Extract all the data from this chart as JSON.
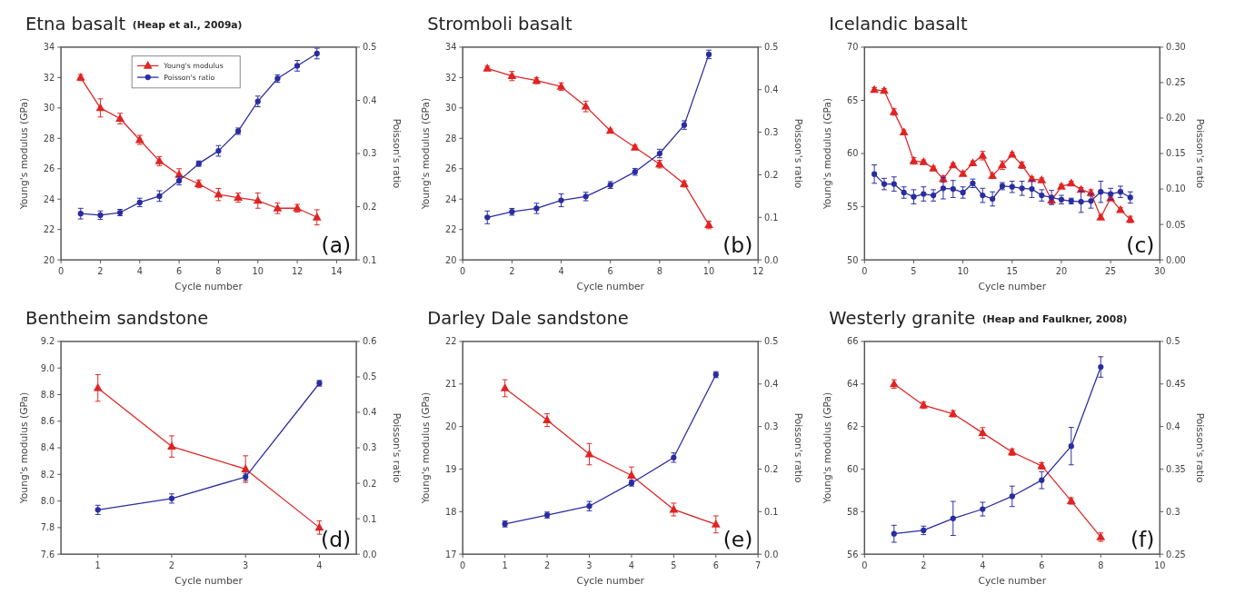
{
  "chart_data": [
    {
      "type": "line",
      "title": "Etna basalt",
      "subtitle": "(Heap et al., 2009a)",
      "xlabel": "Cycle number",
      "ylabel": "Young's modulus (GPa)",
      "y2label": "Poisson's ratio",
      "annotations": [
        "(a)"
      ],
      "legend": "top left",
      "grid": false,
      "xlim": [
        0,
        15
      ],
      "xticks": [
        0,
        2,
        4,
        6,
        8,
        10,
        12,
        14
      ],
      "ylim": [
        20,
        34
      ],
      "yticks": [
        20,
        22,
        24,
        26,
        28,
        30,
        32,
        34
      ],
      "y2lim": [
        0.1,
        0.5
      ],
      "y2ticks": [
        0.1,
        0.2,
        0.3,
        0.4,
        0.5
      ],
      "series": [
        {
          "name": "Young's modulus",
          "color": "#e02424",
          "marker": "triangle",
          "x": [
            1,
            2,
            3,
            4,
            5,
            6,
            7,
            8,
            9,
            10,
            11,
            12,
            13
          ],
          "values": [
            32.0,
            30.0,
            29.3,
            27.9,
            26.5,
            25.6,
            25.0,
            24.3,
            24.1,
            23.9,
            23.4,
            23.4,
            22.8
          ],
          "errors": [
            0.2,
            0.6,
            0.35,
            0.3,
            0.3,
            0.4,
            0.25,
            0.4,
            0.3,
            0.5,
            0.35,
            0.25,
            0.5
          ]
        },
        {
          "name": "Poisson's ratio",
          "color": "#2a2ca0",
          "marker": "circle",
          "axis": "y2",
          "x": [
            1,
            2,
            3,
            4,
            5,
            6,
            7,
            8,
            9,
            10,
            11,
            12,
            13
          ],
          "values": [
            0.187,
            0.184,
            0.189,
            0.208,
            0.22,
            0.249,
            0.281,
            0.305,
            0.342,
            0.398,
            0.441,
            0.465,
            0.488
          ],
          "errors": [
            0.01,
            0.008,
            0.006,
            0.008,
            0.01,
            0.008,
            0.005,
            0.01,
            0.006,
            0.01,
            0.007,
            0.01,
            0.01
          ]
        }
      ]
    },
    {
      "type": "line",
      "title": "Stromboli basalt",
      "xlabel": "Cycle number",
      "ylabel": "Young's modulus (GPa)",
      "y2label": "Poisson's ratio",
      "annotations": [
        "(b)"
      ],
      "grid": false,
      "xlim": [
        0,
        12
      ],
      "xticks": [
        0,
        2,
        4,
        6,
        8,
        10,
        12
      ],
      "ylim": [
        20,
        34
      ],
      "yticks": [
        20,
        22,
        24,
        26,
        28,
        30,
        32,
        34
      ],
      "y2lim": [
        0,
        0.5
      ],
      "y2ticks": [
        {
          "value": 0,
          "label": "0.0"
        },
        0.1,
        0.2,
        0.3,
        0.4,
        0.5
      ],
      "series": [
        {
          "color": "#e02424",
          "marker": "triangle",
          "x": [
            1,
            2,
            3,
            4,
            5,
            6,
            7,
            8,
            9,
            10
          ],
          "values": [
            32.6,
            32.1,
            31.8,
            31.4,
            30.1,
            28.5,
            27.4,
            26.3,
            25.0,
            22.3
          ],
          "errors": [
            0.15,
            0.3,
            0.2,
            0.25,
            0.35,
            0.1,
            0.15,
            0.25,
            0.2,
            0.25
          ]
        },
        {
          "color": "#2a2ca0",
          "marker": "circle",
          "axis": "y2",
          "x": [
            1,
            2,
            3,
            4,
            5,
            6,
            7,
            8,
            9,
            10
          ],
          "values": [
            0.1,
            0.113,
            0.121,
            0.14,
            0.149,
            0.176,
            0.207,
            0.25,
            0.317,
            0.483
          ],
          "errors": [
            0.015,
            0.008,
            0.012,
            0.015,
            0.01,
            0.008,
            0.008,
            0.01,
            0.01,
            0.01
          ]
        }
      ]
    },
    {
      "type": "line",
      "title": "Icelandic basalt",
      "xlabel": "Cycle number",
      "ylabel": "Young's modulus (GPa)",
      "y2label": "Poisson's ratio",
      "annotations": [
        "(c)"
      ],
      "grid": false,
      "xlim": [
        0,
        30
      ],
      "xticks": [
        0,
        5,
        10,
        15,
        20,
        25,
        30
      ],
      "ylim": [
        50,
        70
      ],
      "yticks": [
        50,
        55,
        60,
        65,
        70
      ],
      "y2lim": [
        0,
        0.3
      ],
      "y2ticks": [
        {
          "value": 0,
          "label": "0.00"
        },
        {
          "value": 0.05,
          "label": "0.05"
        },
        {
          "value": 0.1,
          "label": "0.10"
        },
        {
          "value": 0.15,
          "label": "0.15"
        },
        {
          "value": 0.2,
          "label": "0.20"
        },
        {
          "value": 0.25,
          "label": "0.25"
        },
        {
          "value": 0.3,
          "label": "0.30"
        }
      ],
      "series": [
        {
          "color": "#e02424",
          "marker": "triangle",
          "x": [
            1,
            2,
            3,
            4,
            5,
            6,
            7,
            8,
            9,
            10,
            11,
            12,
            13,
            14,
            15,
            16,
            17,
            18,
            19,
            20,
            21,
            22,
            23,
            24,
            25,
            26,
            27
          ],
          "values": [
            66.0,
            65.9,
            63.9,
            62.0,
            59.3,
            59.2,
            58.6,
            57.6,
            58.9,
            58.1,
            59.1,
            59.8,
            57.9,
            58.9,
            59.9,
            58.9,
            57.6,
            57.5,
            55.6,
            56.9,
            57.2,
            56.6,
            56.3,
            54.0,
            55.8,
            54.7,
            53.8
          ],
          "errors": [
            0.2,
            0.2,
            0.3,
            0.2,
            0.3,
            0.2,
            0.2,
            0.3,
            0.2,
            0.2,
            0.2,
            0.4,
            0.2,
            0.4,
            0.2,
            0.3,
            0.2,
            0.2,
            0.3,
            0.2,
            0.2,
            0.2,
            0.3,
            0.2,
            0.2,
            0.2,
            0.3
          ]
        },
        {
          "color": "#2a2ca0",
          "marker": "circle",
          "axis": "y2",
          "x": [
            1,
            2,
            3,
            4,
            5,
            6,
            7,
            8,
            9,
            10,
            11,
            12,
            13,
            14,
            15,
            16,
            17,
            18,
            19,
            20,
            21,
            22,
            23,
            24,
            25,
            26,
            27
          ],
          "values": [
            0.121,
            0.107,
            0.107,
            0.095,
            0.089,
            0.093,
            0.091,
            0.101,
            0.1,
            0.095,
            0.108,
            0.091,
            0.086,
            0.104,
            0.103,
            0.101,
            0.1,
            0.091,
            0.088,
            0.085,
            0.083,
            0.082,
            0.083,
            0.096,
            0.093,
            0.096,
            0.088
          ],
          "errors": [
            0.013,
            0.008,
            0.01,
            0.008,
            0.01,
            0.01,
            0.008,
            0.015,
            0.012,
            0.008,
            0.006,
            0.01,
            0.01,
            0.005,
            0.008,
            0.01,
            0.012,
            0.008,
            0.01,
            0.006,
            0.004,
            0.015,
            0.01,
            0.015,
            0.008,
            0.008,
            0.008
          ]
        }
      ]
    },
    {
      "type": "line",
      "title": "Bentheim sandstone",
      "xlabel": "Cycle number",
      "ylabel": "Young's modulus (GPa)",
      "y2label": "Poisson's ratio",
      "annotations": [
        "(d)"
      ],
      "grid": false,
      "xlim": [
        0.5,
        4.5
      ],
      "xticks": [
        1,
        2,
        3,
        4
      ],
      "ylim": [
        7.6,
        9.2
      ],
      "yticks": [
        7.6,
        7.8,
        {
          "value": 8,
          "label": "8.0"
        },
        8.2,
        8.4,
        8.6,
        8.8,
        {
          "value": 9,
          "label": "9.0"
        },
        9.2
      ],
      "y2lim": [
        0,
        0.6
      ],
      "y2ticks": [
        {
          "value": 0,
          "label": "0.0"
        },
        0.1,
        0.2,
        0.3,
        0.4,
        0.5,
        0.6
      ],
      "series": [
        {
          "color": "#e02424",
          "marker": "triangle",
          "x": [
            1,
            2,
            3,
            4
          ],
          "values": [
            8.85,
            8.41,
            8.24,
            7.8
          ],
          "errors": [
            0.1,
            0.08,
            0.1,
            0.05
          ]
        },
        {
          "color": "#2a2ca0",
          "marker": "circle",
          "axis": "y2",
          "x": [
            1,
            2,
            3,
            4
          ],
          "values": [
            0.125,
            0.157,
            0.218,
            0.482
          ],
          "errors": [
            0.013,
            0.013,
            0.01,
            0.008
          ]
        }
      ]
    },
    {
      "type": "line",
      "title": "Darley Dale sandstone",
      "xlabel": "Cycle number",
      "ylabel": "Young's modulus (GPa)",
      "y2label": "Poisson's ratio",
      "annotations": [
        "(e)"
      ],
      "grid": false,
      "xlim": [
        0,
        7
      ],
      "xticks": [
        0,
        1,
        2,
        3,
        4,
        5,
        6,
        7
      ],
      "ylim": [
        17,
        22
      ],
      "yticks": [
        17,
        18,
        19,
        20,
        21,
        22
      ],
      "y2lim": [
        0,
        0.5
      ],
      "y2ticks": [
        {
          "value": 0,
          "label": "0.0"
        },
        0.1,
        0.2,
        0.3,
        0.4,
        0.5
      ],
      "series": [
        {
          "color": "#e02424",
          "marker": "triangle",
          "x": [
            1,
            2,
            3,
            4,
            5,
            6
          ],
          "values": [
            20.9,
            20.15,
            19.35,
            18.85,
            18.05,
            17.7
          ],
          "errors": [
            0.2,
            0.15,
            0.25,
            0.2,
            0.15,
            0.2
          ]
        },
        {
          "color": "#2a2ca0",
          "marker": "circle",
          "axis": "y2",
          "x": [
            1,
            2,
            3,
            4,
            5,
            6
          ],
          "values": [
            0.071,
            0.092,
            0.113,
            0.167,
            0.227,
            0.422
          ],
          "errors": [
            0.007,
            0.007,
            0.011,
            0.007,
            0.011,
            0.007
          ]
        }
      ]
    },
    {
      "type": "line",
      "title": "Westerly granite",
      "subtitle": "(Heap and Faulkner, 2008)",
      "xlabel": "Cycle number",
      "ylabel": "Young's modulus (GPa)",
      "y2label": "Poisson's ratio",
      "annotations": [
        "(f)"
      ],
      "grid": false,
      "xlim": [
        0,
        10
      ],
      "xticks": [
        0,
        2,
        4,
        6,
        8,
        10
      ],
      "ylim": [
        56,
        66
      ],
      "yticks": [
        56,
        58,
        60,
        62,
        64,
        66
      ],
      "y2lim": [
        0.25,
        0.5
      ],
      "y2ticks": [
        0.25,
        0.3,
        0.35,
        0.4,
        0.45,
        0.5
      ],
      "series": [
        {
          "color": "#e02424",
          "marker": "triangle",
          "x": [
            1,
            2,
            3,
            4,
            5,
            6,
            7,
            8
          ],
          "values": [
            64.0,
            63.0,
            62.6,
            61.7,
            60.8,
            60.15,
            58.5,
            56.8
          ],
          "errors": [
            0.2,
            0.15,
            0.15,
            0.25,
            0.15,
            0.15,
            0.15,
            0.2
          ]
        },
        {
          "color": "#2a2ca0",
          "marker": "circle",
          "axis": "y2",
          "x": [
            1,
            2,
            3,
            4,
            5,
            6,
            7,
            8
          ],
          "values": [
            0.274,
            0.278,
            0.292,
            0.303,
            0.318,
            0.337,
            0.377,
            0.47
          ],
          "errors": [
            0.01,
            0.005,
            0.02,
            0.008,
            0.012,
            0.01,
            0.022,
            0.012
          ]
        }
      ]
    }
  ]
}
